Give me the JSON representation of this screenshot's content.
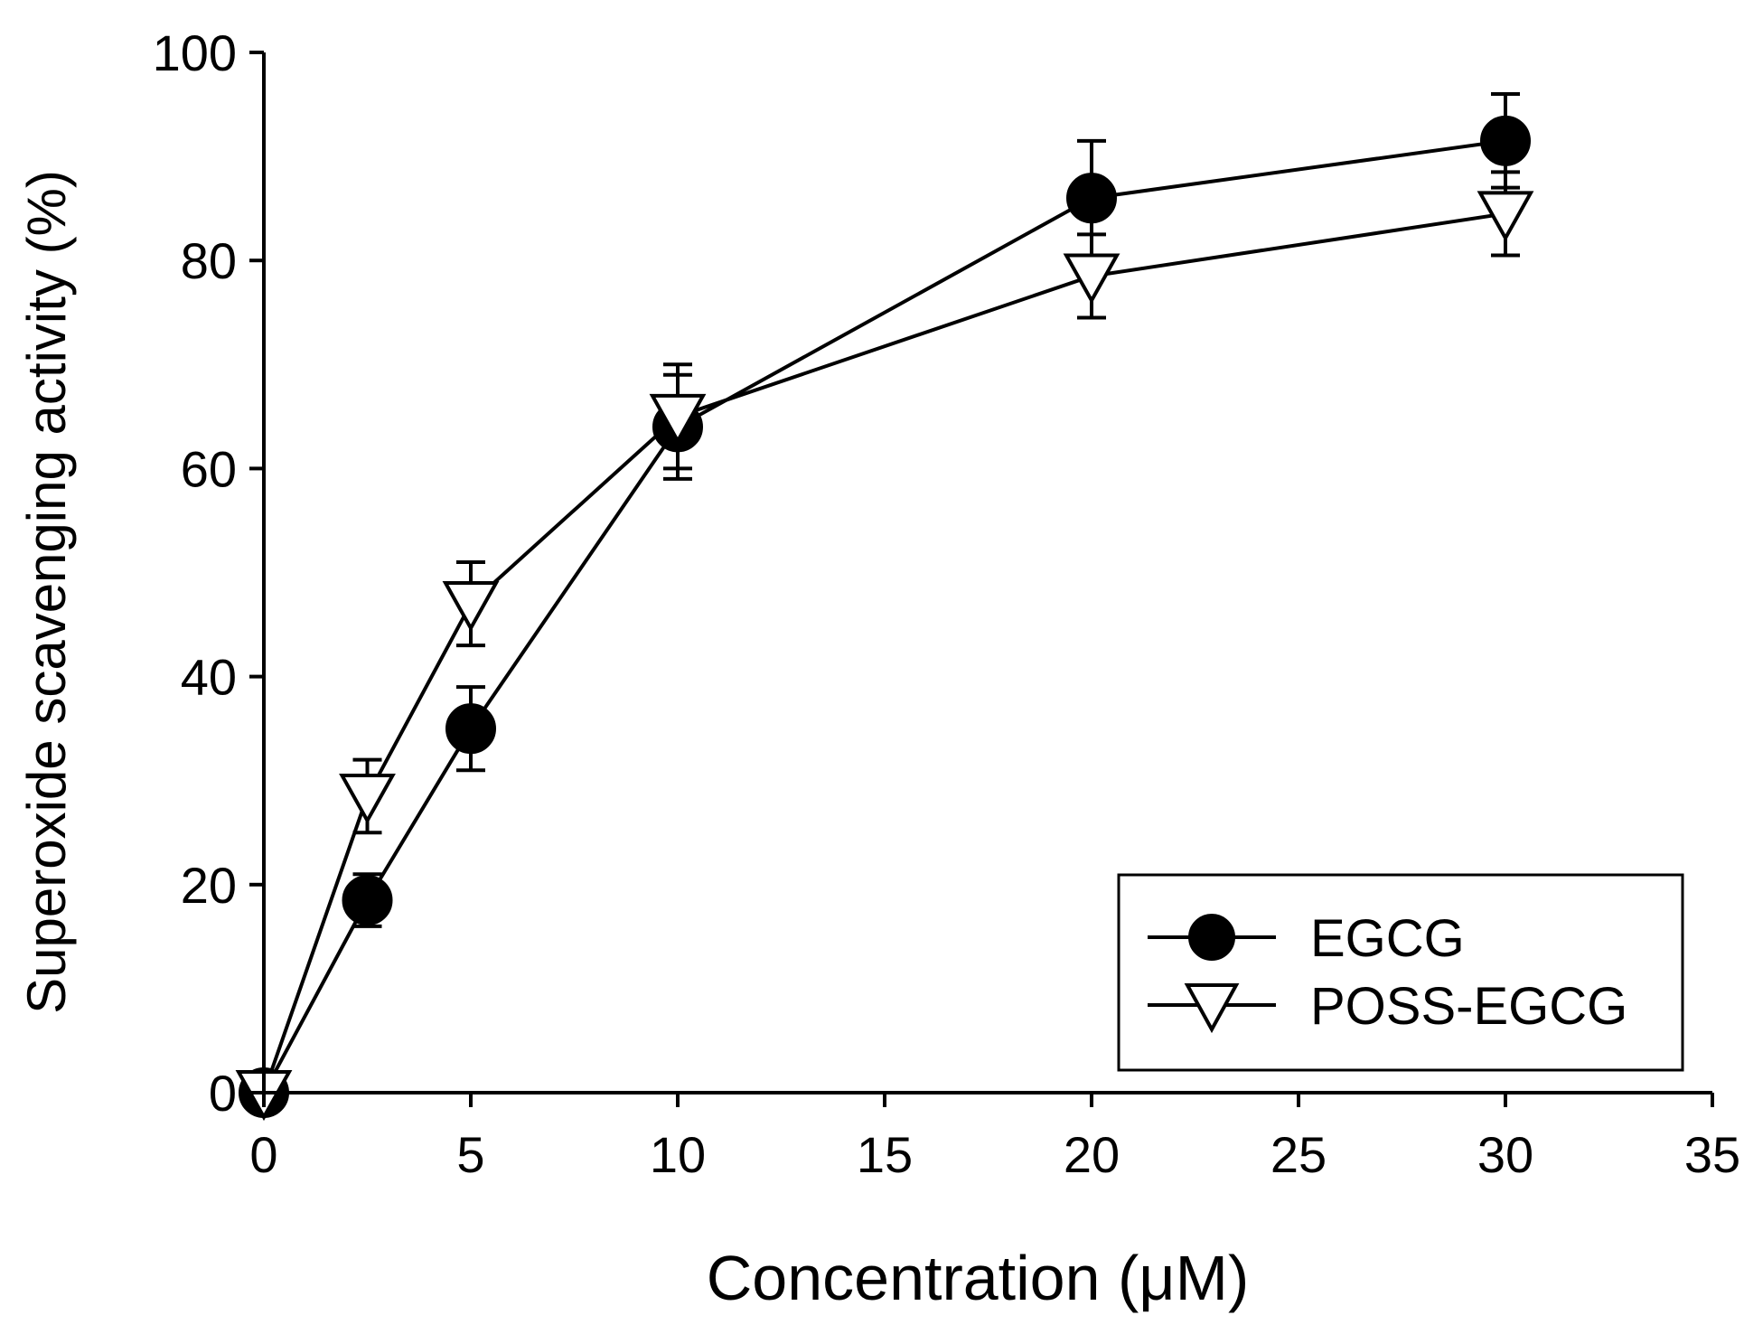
{
  "chart_data": {
    "type": "line",
    "title": "",
    "xlabel": "Concentration (μM)",
    "ylabel": "Superoxide scavenging activity (%)",
    "xlim": [
      0,
      35
    ],
    "ylim": [
      0,
      100
    ],
    "xticks": [
      0,
      5,
      10,
      15,
      20,
      25,
      30,
      35
    ],
    "yticks": [
      0,
      20,
      40,
      60,
      80,
      100
    ],
    "xtick_labels": [
      "0",
      "5",
      "10",
      "15",
      "20",
      "25",
      "30",
      "35"
    ],
    "ytick_labels": [
      "0",
      "20",
      "40",
      "60",
      "80",
      "100"
    ],
    "grid": false,
    "legend_position": "bottom-right",
    "series": [
      {
        "name": "EGCG",
        "marker": "filled-circle",
        "color": "#000000",
        "x": [
          0,
          2.5,
          5,
          10,
          20,
          30
        ],
        "y": [
          0,
          18.5,
          35,
          64,
          86,
          91.5
        ],
        "err": [
          0,
          2.5,
          4,
          5,
          5.5,
          4.5
        ]
      },
      {
        "name": "POSS-EGCG",
        "marker": "open-triangle-down",
        "color": "#000000",
        "x": [
          0,
          2.5,
          5,
          10,
          20,
          30
        ],
        "y": [
          0,
          28.5,
          47,
          65,
          78.5,
          84.5
        ],
        "err": [
          0,
          3.5,
          4,
          5,
          4,
          4
        ]
      }
    ]
  }
}
